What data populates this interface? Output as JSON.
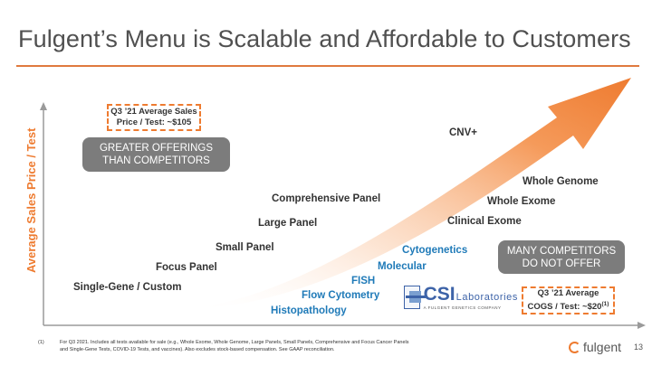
{
  "slide": {
    "title": "Fulgent’s Menu is Scalable and Affordable to Customers",
    "page_number": "13"
  },
  "axis": {
    "y_label": "Average Sales Price / Test"
  },
  "callouts": {
    "asp_box": [
      "Q3 ’21 Average Sales",
      "Price / Test: ~$105"
    ],
    "cogs_box": [
      "Q3 ’21 Average",
      "COGS / Test: ~$20"
    ],
    "cogs_footnote_mark": "(1)"
  },
  "pills": {
    "greater": [
      "GREATER OFFERINGS",
      "THAN COMPETITORS"
    ],
    "many": [
      "MANY COMPETITORS",
      "DO NOT OFFER"
    ]
  },
  "offerings": {
    "dark": [
      "Single-Gene / Custom",
      "Focus Panel",
      "Small Panel",
      "Large Panel",
      "Comprehensive Panel",
      "CNV+",
      "Clinical Exome",
      "Whole Exome",
      "Whole Genome"
    ],
    "blue": [
      "Histopathology",
      "Flow Cytometry",
      "FISH",
      "Molecular",
      "Cytogenetics"
    ]
  },
  "csi_logo": {
    "big": "CSI",
    "small": "Laboratories",
    "tagline": "A FULGENT GENETICS COMPANY"
  },
  "footnote": {
    "number": "(1)",
    "text": "For Q3 2021. Includes all tests available for sale (e.g., Whole Exome, Whole Genome, Large Panels, Small Panels, Comprehensive and Focus Cancer Panels and Single-Gene Tests, COVID-19 Tests, and vaccines). Also excludes stock-based compensation. See GAAP reconciliation."
  },
  "logo": {
    "text": "fulgent"
  },
  "colors": {
    "accent": "#ee7b30",
    "dark_text": "#333333",
    "blue_text": "#1f7ab8",
    "pill_gray": "#7c7c7c"
  }
}
